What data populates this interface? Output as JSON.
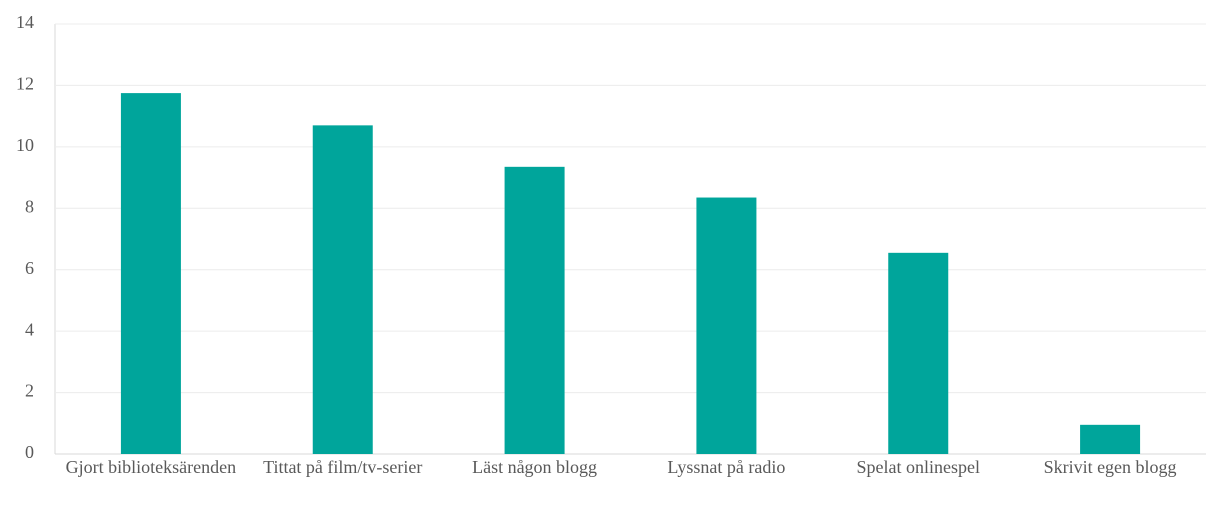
{
  "chart_data": {
    "type": "bar",
    "categories": [
      "Gjort biblioteksärenden",
      "Tittat på film/tv-serier",
      "Läst någon blogg",
      "Lyssnat på radio",
      "Spelat onlinespel",
      "Skrivit egen blogg"
    ],
    "values": [
      11.75,
      10.7,
      9.35,
      8.35,
      6.55,
      0.95
    ],
    "color": "#00a59b",
    "ylim": [
      0,
      14
    ],
    "yticks": [
      0,
      2,
      4,
      6,
      8,
      10,
      12,
      14
    ],
    "grid": true
  }
}
